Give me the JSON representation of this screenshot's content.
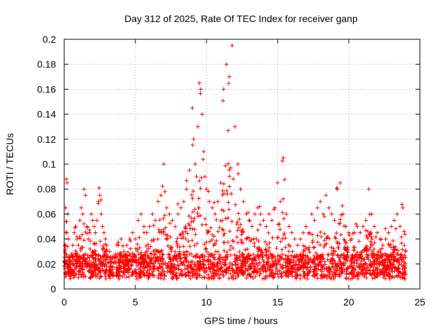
{
  "chart_data": {
    "type": "scatter",
    "title": "Day 312 of 2025, Rate Of TEC Index for receiver ganp",
    "xlabel": "GPS time / hours",
    "ylabel": "ROTI / TECUs",
    "xlim": [
      0,
      25
    ],
    "ylim": [
      0,
      0.2
    ],
    "xticks": [
      0,
      5,
      10,
      15,
      20,
      25
    ],
    "xtick_labels": [
      "0",
      "5",
      "10",
      "15",
      "20",
      "25"
    ],
    "yticks": [
      0,
      0.02,
      0.04,
      0.06,
      0.08,
      0.1,
      0.12,
      0.14,
      0.16,
      0.18,
      0.2
    ],
    "ytick_labels": [
      "0",
      "0.02",
      "0.04",
      "0.06",
      "0.08",
      "0.1",
      "0.12",
      "0.14",
      "0.16",
      "0.18",
      "0.2"
    ],
    "grid": true,
    "marker": "+",
    "color": "#ff0000",
    "series": [
      {
        "x": [
          0.0,
          0.05,
          0.1,
          0.15,
          0.2,
          0.25,
          0.3,
          0.35,
          0.4,
          0.5,
          0.6,
          0.7,
          0.8,
          0.9,
          1.0,
          1.1,
          1.2,
          1.3,
          1.4,
          1.5,
          1.6,
          1.7,
          1.8,
          1.9,
          2.0,
          2.1,
          2.2,
          2.3,
          2.4,
          2.5,
          2.6,
          2.7,
          2.8,
          2.9,
          3.0,
          3.2,
          3.4,
          3.6,
          3.8,
          4.0,
          4.2,
          4.4,
          4.6,
          4.8,
          5.0,
          5.2,
          5.4,
          5.6,
          5.8,
          6.0,
          6.2,
          6.4,
          6.6,
          6.8,
          7.0,
          7.2,
          7.4,
          7.6,
          7.8,
          8.0,
          8.2,
          8.4,
          8.6,
          8.8,
          9.0,
          9.1,
          9.2,
          9.3,
          9.4,
          9.5,
          9.6,
          9.7,
          9.8,
          9.9,
          10.0,
          10.2,
          10.4,
          10.6,
          10.8,
          11.0,
          11.2,
          11.4,
          11.6,
          11.8,
          12.0,
          12.2,
          12.4,
          12.6,
          12.8,
          13.0,
          13.2,
          13.4,
          13.6,
          13.8,
          14.0,
          14.2,
          14.4,
          14.6,
          14.8,
          15.0,
          15.2,
          15.4,
          15.6,
          15.8,
          16.0,
          16.2,
          16.4,
          16.6,
          16.8,
          17.0,
          17.2,
          17.4,
          17.6,
          17.8,
          18.0,
          18.2,
          18.4,
          18.6,
          18.8,
          19.0,
          19.2,
          19.4,
          19.6,
          19.8,
          20.0,
          20.2,
          20.4,
          20.6,
          20.8,
          21.0,
          21.2,
          21.4,
          21.6,
          21.8,
          22.0,
          22.2,
          22.4,
          22.6,
          22.8,
          23.0,
          23.2,
          23.4,
          23.6,
          23.8,
          24.0
        ],
        "y": [
          0.018,
          0.03,
          0.065,
          0.088,
          0.085,
          0.06,
          0.04,
          0.025,
          0.02,
          0.028,
          0.035,
          0.045,
          0.05,
          0.04,
          0.035,
          0.055,
          0.065,
          0.06,
          0.08,
          0.075,
          0.05,
          0.04,
          0.045,
          0.06,
          0.055,
          0.05,
          0.045,
          0.055,
          0.07,
          0.075,
          0.06,
          0.05,
          0.045,
          0.04,
          0.035,
          0.03,
          0.025,
          0.028,
          0.035,
          0.04,
          0.03,
          0.035,
          0.04,
          0.045,
          0.04,
          0.055,
          0.06,
          0.05,
          0.045,
          0.05,
          0.06,
          0.055,
          0.07,
          0.075,
          0.1,
          0.065,
          0.06,
          0.055,
          0.05,
          0.06,
          0.065,
          0.07,
          0.08,
          0.095,
          0.145,
          0.12,
          0.1,
          0.09,
          0.13,
          0.165,
          0.16,
          0.14,
          0.11,
          0.09,
          0.08,
          0.07,
          0.065,
          0.06,
          0.07,
          0.085,
          0.16,
          0.18,
          0.17,
          0.195,
          0.13,
          0.1,
          0.08,
          0.07,
          0.06,
          0.055,
          0.05,
          0.06,
          0.065,
          0.06,
          0.055,
          0.05,
          0.06,
          0.055,
          0.065,
          0.085,
          0.07,
          0.105,
          0.06,
          0.05,
          0.045,
          0.04,
          0.035,
          0.04,
          0.045,
          0.05,
          0.045,
          0.06,
          0.055,
          0.065,
          0.07,
          0.06,
          0.075,
          0.065,
          0.06,
          0.055,
          0.08,
          0.085,
          0.06,
          0.05,
          0.045,
          0.04,
          0.045,
          0.05,
          0.045,
          0.05,
          0.055,
          0.08,
          0.06,
          0.05,
          0.045,
          0.04,
          0.035,
          0.04,
          0.045,
          0.05,
          0.055,
          0.06,
          0.05,
          0.065,
          0.03
        ]
      }
    ]
  }
}
